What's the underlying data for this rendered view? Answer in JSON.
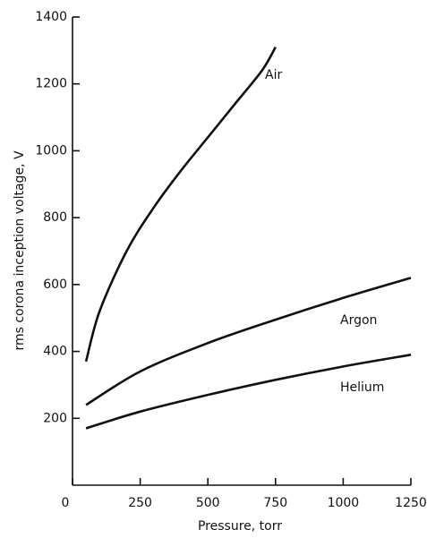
{
  "chart_data": {
    "type": "line",
    "x_label": "Pressure, torr",
    "y_label": "rms corona inception voltage, V",
    "xlim": [
      0,
      1250
    ],
    "xticks": [
      0,
      250,
      500,
      750,
      1000,
      1250
    ],
    "ylim": [
      0,
      1400
    ],
    "yticks": [
      200,
      400,
      600,
      800,
      1000,
      1200,
      1400
    ],
    "grid": false,
    "series": [
      {
        "name": "Air",
        "color": "#111111",
        "x": [
          50,
          100,
          200,
          300,
          400,
          500,
          600,
          700,
          750
        ],
        "values": [
          370,
          520,
          700,
          830,
          940,
          1040,
          1140,
          1240,
          1310
        ]
      },
      {
        "name": "Argon",
        "color": "#111111",
        "x": [
          50,
          250,
          500,
          750,
          1000,
          1250
        ],
        "values": [
          240,
          340,
          425,
          495,
          560,
          620
        ]
      },
      {
        "name": "Helium",
        "color": "#111111",
        "x": [
          50,
          250,
          500,
          750,
          1000,
          1250
        ],
        "values": [
          170,
          220,
          270,
          315,
          355,
          390
        ]
      }
    ]
  }
}
